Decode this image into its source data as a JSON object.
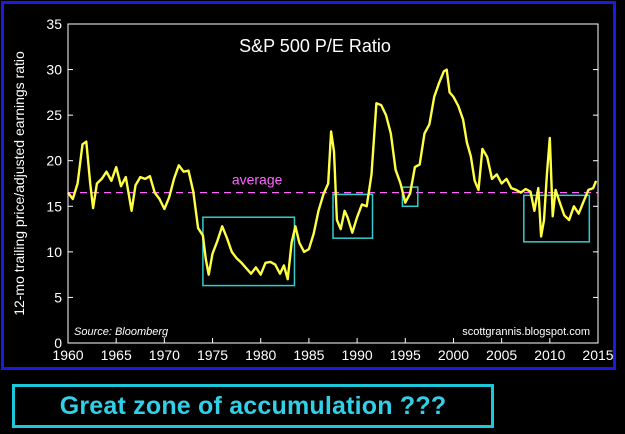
{
  "chart_data": {
    "type": "line",
    "title": "S&P 500 P/E Ratio",
    "ylabel": "12-mo trailing price/adjusted earnings ratio",
    "xlabel": "",
    "source": "Source: Bloomberg",
    "credit": "scottgrannis.blogspot.com",
    "xlim": [
      1960,
      2015
    ],
    "ylim": [
      0,
      35
    ],
    "x_ticks": [
      1960,
      1965,
      1970,
      1975,
      1980,
      1985,
      1990,
      1995,
      2000,
      2005,
      2010,
      2015
    ],
    "y_ticks": [
      0,
      5,
      10,
      15,
      20,
      25,
      30,
      35
    ],
    "average": {
      "value": 16.5,
      "label": "average"
    },
    "colors": {
      "line": "#ffff44",
      "average": "#ff66ff",
      "box": "#33cccc",
      "frame": "#1a1ae0"
    },
    "highlight_boxes": [
      {
        "x0": 1974.0,
        "x1": 1983.5,
        "y0": 6.3,
        "y1": 13.8
      },
      {
        "x0": 1987.5,
        "x1": 1991.6,
        "y0": 11.5,
        "y1": 16.3
      },
      {
        "x0": 1994.7,
        "x1": 1996.3,
        "y0": 15.0,
        "y1": 17.1
      },
      {
        "x0": 2007.3,
        "x1": 2014.1,
        "y0": 11.1,
        "y1": 16.2
      }
    ],
    "series": [
      {
        "x": [
          1960.0,
          1960.5,
          1961.0,
          1961.5,
          1961.9,
          1962.3,
          1962.6,
          1963.0,
          1963.5,
          1964.0,
          1964.5,
          1965.0,
          1965.5,
          1966.0,
          1966.6,
          1967.0,
          1967.5,
          1968.0,
          1968.5,
          1969.0,
          1969.5,
          1970.0,
          1970.5,
          1971.0,
          1971.5,
          1972.0,
          1972.5,
          1973.0,
          1973.5,
          1974.0,
          1974.3,
          1974.6,
          1975.0,
          1975.5,
          1976.0,
          1976.5,
          1977.0,
          1977.5,
          1978.0,
          1978.5,
          1979.0,
          1979.5,
          1980.0,
          1980.5,
          1981.0,
          1981.5,
          1982.0,
          1982.4,
          1982.8,
          1983.2,
          1983.6,
          1984.0,
          1984.5,
          1985.0,
          1985.5,
          1986.0,
          1986.5,
          1987.0,
          1987.3,
          1987.6,
          1987.9,
          1988.3,
          1988.7,
          1989.0,
          1989.5,
          1990.0,
          1990.5,
          1991.0,
          1991.5,
          1992.0,
          1992.5,
          1993.0,
          1993.5,
          1994.0,
          1994.5,
          1995.0,
          1995.5,
          1996.0,
          1996.5,
          1997.0,
          1997.5,
          1998.0,
          1998.5,
          1999.0,
          1999.3,
          1999.6,
          2000.0,
          2000.5,
          2001.0,
          2001.4,
          2001.8,
          2002.2,
          2002.6,
          2003.0,
          2003.5,
          2004.0,
          2004.5,
          2005.0,
          2005.5,
          2006.0,
          2006.5,
          2007.0,
          2007.5,
          2008.0,
          2008.4,
          2008.8,
          2009.1,
          2009.4,
          2009.7,
          2010.0,
          2010.3,
          2010.6,
          2011.0,
          2011.5,
          2012.0,
          2012.5,
          2013.0,
          2013.5,
          2014.0,
          2014.5,
          2014.8
        ],
        "y": [
          16.5,
          15.8,
          17.5,
          21.8,
          22.1,
          17.5,
          14.8,
          17.5,
          18.0,
          18.8,
          17.8,
          19.3,
          17.2,
          18.2,
          14.5,
          17.3,
          18.2,
          18.0,
          18.3,
          16.5,
          15.8,
          14.7,
          16.0,
          18.0,
          19.5,
          18.8,
          18.9,
          16.6,
          12.6,
          11.8,
          9.2,
          7.5,
          9.8,
          11.2,
          12.8,
          11.5,
          10.0,
          9.3,
          8.8,
          8.2,
          7.6,
          8.3,
          7.5,
          8.8,
          8.9,
          8.6,
          7.6,
          8.5,
          7.0,
          11.0,
          12.8,
          11.0,
          10.0,
          10.3,
          12.0,
          14.5,
          16.3,
          17.5,
          23.2,
          21.0,
          13.5,
          12.5,
          14.5,
          13.8,
          12.1,
          13.8,
          15.2,
          15.0,
          18.5,
          26.3,
          26.1,
          25.0,
          23.0,
          19.0,
          17.5,
          15.4,
          16.4,
          19.3,
          19.6,
          23.0,
          24.0,
          27.0,
          28.5,
          29.8,
          30.0,
          27.5,
          27.0,
          26.0,
          24.5,
          22.0,
          20.5,
          17.8,
          16.8,
          21.3,
          20.4,
          18.0,
          18.5,
          17.5,
          18.0,
          17.0,
          16.8,
          16.5,
          16.9,
          16.6,
          14.5,
          17.0,
          11.7,
          13.5,
          18.5,
          22.5,
          13.9,
          16.8,
          15.5,
          14.0,
          13.5,
          15.0,
          14.2,
          15.5,
          16.8,
          17.0,
          17.8
        ]
      }
    ]
  },
  "banner": {
    "text": "Great zone of accumulation ???"
  }
}
